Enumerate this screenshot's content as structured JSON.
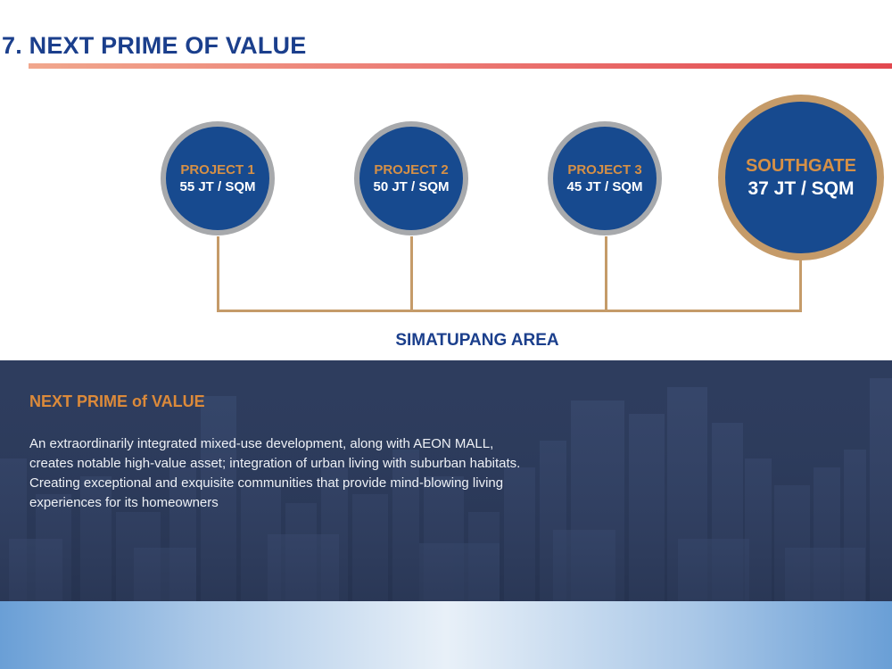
{
  "header": {
    "title": "7. NEXT PRIME OF VALUE"
  },
  "projects": [
    {
      "name": "PROJECT 1",
      "price": "55 JT / SQM"
    },
    {
      "name": "PROJECT 2",
      "price": "50 JT / SQM"
    },
    {
      "name": "PROJECT 3",
      "price": "45 JT / SQM"
    },
    {
      "name": "SOUTHGATE",
      "price": "37 JT / SQM"
    }
  ],
  "area_label": "SIMATUPANG AREA",
  "info": {
    "heading": "NEXT PRIME of VALUE",
    "lines": [
      "An extraordinarily integrated mixed-use development, along with AEON MALL,",
      "creates notable high-value asset; integration of urban living with suburban habitats.",
      "Creating exceptional and exquisite communities that provide mind-blowing living",
      "experiences for its homeowners"
    ]
  },
  "colors": {
    "title_blue": "#1b3f8c",
    "circle_fill": "#174a8f",
    "gold": "#c59b69",
    "project_label_orange": "#d69046",
    "band_bg": "#2e3d5e"
  }
}
